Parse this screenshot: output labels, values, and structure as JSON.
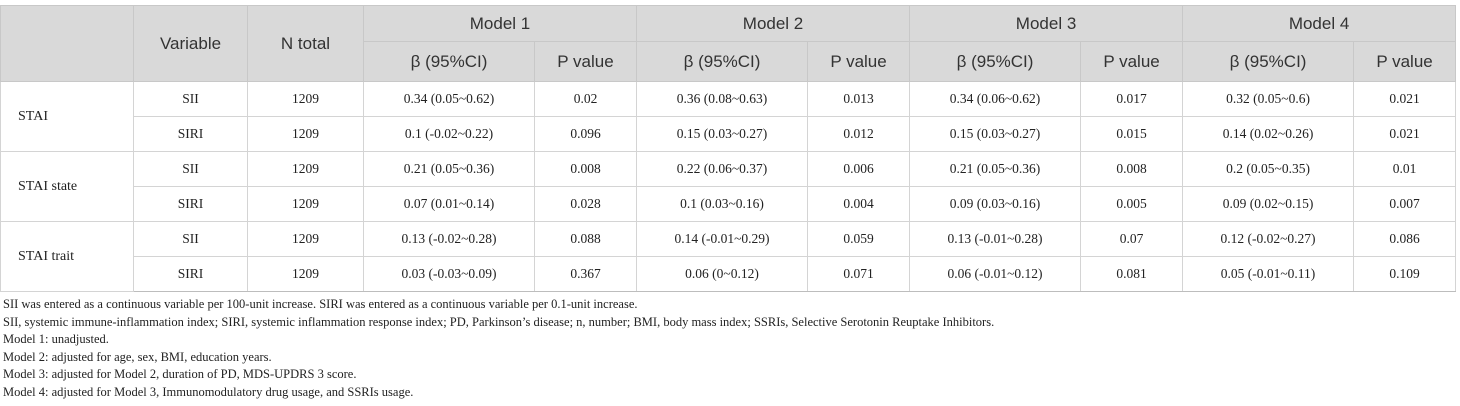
{
  "header": {
    "variable": "Variable",
    "n_total": "N total",
    "models": [
      "Model 1",
      "Model 2",
      "Model 3",
      "Model 4"
    ],
    "beta": "β (95%CI)",
    "pvalue": "P value"
  },
  "groups": [
    {
      "name": "STAI",
      "rows": [
        {
          "variable": "SII",
          "n": "1209",
          "m1_beta": "0.34 (0.05~0.62)",
          "m1_p": "0.02",
          "m2_beta": "0.36 (0.08~0.63)",
          "m2_p": "0.013",
          "m3_beta": "0.34 (0.06~0.62)",
          "m3_p": "0.017",
          "m4_beta": "0.32 (0.05~0.6)",
          "m4_p": "0.021"
        },
        {
          "variable": "SIRI",
          "n": "1209",
          "m1_beta": "0.1 (-0.02~0.22)",
          "m1_p": "0.096",
          "m2_beta": "0.15 (0.03~0.27)",
          "m2_p": "0.012",
          "m3_beta": "0.15 (0.03~0.27)",
          "m3_p": "0.015",
          "m4_beta": "0.14 (0.02~0.26)",
          "m4_p": "0.021"
        }
      ]
    },
    {
      "name": "STAI state",
      "rows": [
        {
          "variable": "SII",
          "n": "1209",
          "m1_beta": "0.21 (0.05~0.36)",
          "m1_p": "0.008",
          "m2_beta": "0.22 (0.06~0.37)",
          "m2_p": "0.006",
          "m3_beta": "0.21 (0.05~0.36)",
          "m3_p": "0.008",
          "m4_beta": "0.2 (0.05~0.35)",
          "m4_p": "0.01"
        },
        {
          "variable": "SIRI",
          "n": "1209",
          "m1_beta": "0.07 (0.01~0.14)",
          "m1_p": "0.028",
          "m2_beta": "0.1 (0.03~0.16)",
          "m2_p": "0.004",
          "m3_beta": "0.09 (0.03~0.16)",
          "m3_p": "0.005",
          "m4_beta": "0.09 (0.02~0.15)",
          "m4_p": "0.007"
        }
      ]
    },
    {
      "name": "STAI trait",
      "rows": [
        {
          "variable": "SII",
          "n": "1209",
          "m1_beta": "0.13 (-0.02~0.28)",
          "m1_p": "0.088",
          "m2_beta": "0.14 (-0.01~0.29)",
          "m2_p": "0.059",
          "m3_beta": "0.13 (-0.01~0.28)",
          "m3_p": "0.07",
          "m4_beta": "0.12 (-0.02~0.27)",
          "m4_p": "0.086"
        },
        {
          "variable": "SIRI",
          "n": "1209",
          "m1_beta": "0.03 (-0.03~0.09)",
          "m1_p": "0.367",
          "m2_beta": "0.06 (0~0.12)",
          "m2_p": "0.071",
          "m3_beta": "0.06 (-0.01~0.12)",
          "m3_p": "0.081",
          "m4_beta": "0.05 (-0.01~0.11)",
          "m4_p": "0.109"
        }
      ]
    }
  ],
  "notes": [
    "SII was entered as a continuous variable per 100-unit increase. SIRI was entered as a continuous variable per 0.1-unit increase.",
    "SII, systemic immune-inflammation index; SIRI, systemic inflammation response index; PD, Parkinson’s disease; n, number; BMI, body mass index; SSRIs, Selective Serotonin Reuptake Inhibitors.",
    "Model 1: unadjusted.",
    "Model 2: adjusted for age, sex, BMI, education years.",
    "Model 3: adjusted for Model 2, duration of PD, MDS-UPDRS 3 score.",
    "Model 4: adjusted for Model 3, Immunomodulatory drug usage, and SSRIs usage."
  ]
}
